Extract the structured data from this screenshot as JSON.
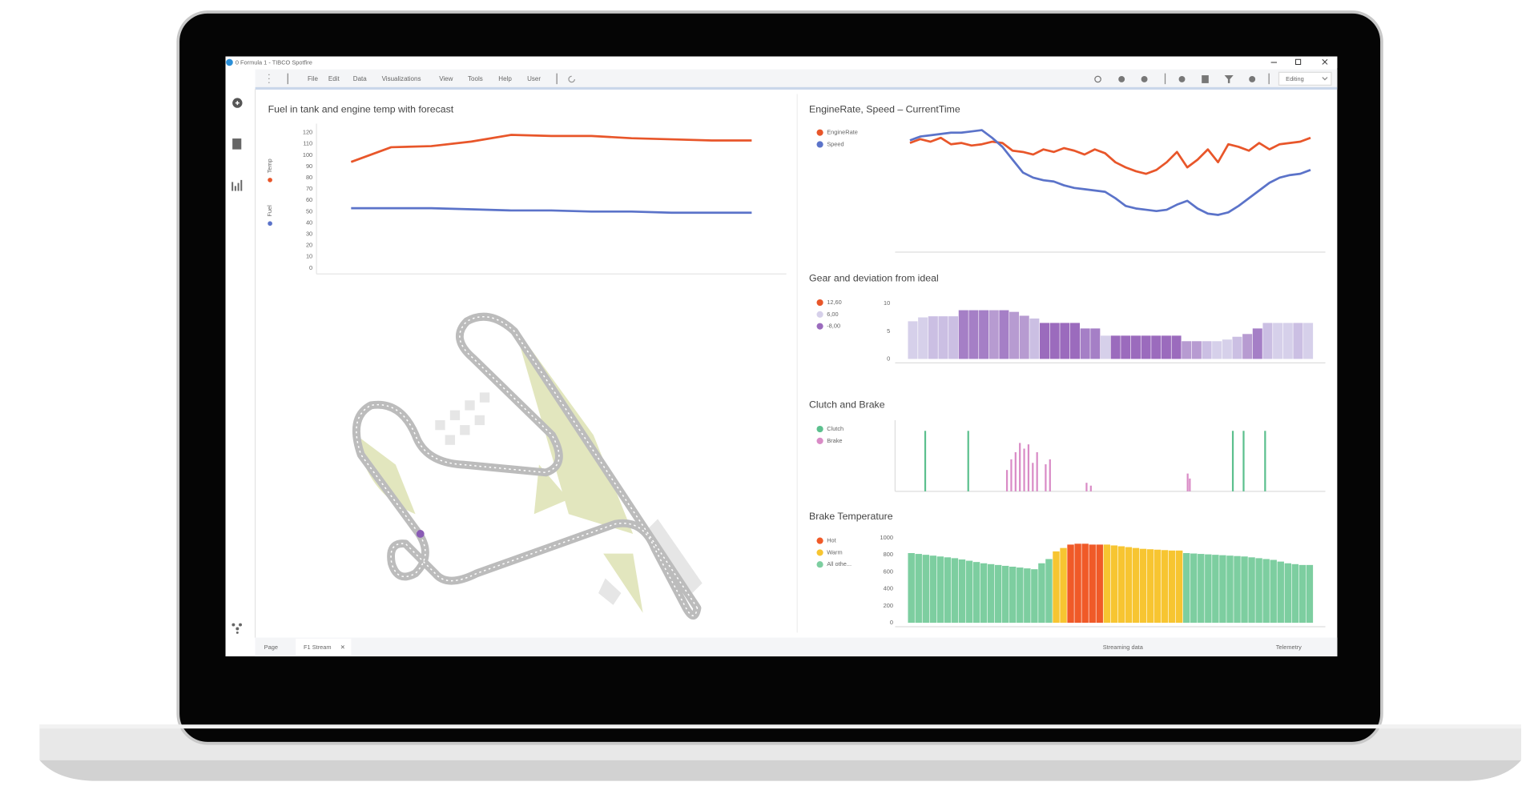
{
  "window": {
    "title": "0 Formula 1 - TIBCO Spotfire",
    "menu": [
      "File",
      "Edit",
      "Data",
      "Visualizations",
      "View",
      "Tools",
      "Help",
      "User"
    ],
    "mode": "Editing"
  },
  "tabs": {
    "page": "Page",
    "active": "F1 Stream",
    "status": "Streaming data",
    "right": "Telemetry"
  },
  "chart_data": [
    {
      "type": "line",
      "title": "Fuel in tank and engine temp with forecast",
      "ylim": [
        0,
        120
      ],
      "yticks": [
        0,
        10,
        20,
        30,
        40,
        50,
        60,
        70,
        80,
        90,
        100,
        110,
        120
      ],
      "series": [
        {
          "name": "Temp",
          "color": "#e8562a",
          "values": [
            94,
            107,
            108,
            112,
            118,
            117,
            117,
            115,
            114,
            113,
            113
          ]
        },
        {
          "name": "Fuel",
          "color": "#5b73c9",
          "values": [
            53,
            53,
            53,
            52,
            51,
            51,
            50,
            50,
            49,
            49,
            49
          ]
        }
      ]
    },
    {
      "type": "line",
      "title": "EngineRate, Speed – CurrentTime",
      "ylim": [
        0,
        100
      ],
      "series": [
        {
          "name": "EngineRate",
          "color": "#e8562a",
          "values": [
            85,
            88,
            86,
            89,
            84,
            85,
            83,
            84,
            86,
            85,
            79,
            78,
            76,
            80,
            78,
            81,
            79,
            76,
            80,
            77,
            70,
            66,
            63,
            61,
            64,
            70,
            78,
            66,
            72,
            80,
            70,
            84,
            82,
            79,
            85,
            80,
            84,
            85,
            86,
            89
          ]
        },
        {
          "name": "Speed",
          "color": "#5b73c9",
          "values": [
            87,
            90,
            91,
            92,
            93,
            93,
            94,
            95,
            89,
            82,
            72,
            62,
            58,
            56,
            55,
            52,
            50,
            49,
            48,
            47,
            42,
            36,
            34,
            33,
            32,
            33,
            37,
            40,
            34,
            30,
            29,
            31,
            36,
            42,
            48,
            54,
            58,
            60,
            61,
            64
          ]
        }
      ]
    },
    {
      "type": "bar",
      "title": "Gear and deviation from ideal",
      "ylim": [
        0,
        10
      ],
      "yticks": [
        0,
        5,
        10
      ],
      "legend": [
        {
          "label": "12,60",
          "color": "#e8562a"
        },
        {
          "label": "6,00",
          "color": "#d6d0ea"
        },
        {
          "label": "-8,00",
          "color": "#9b6bbd"
        }
      ],
      "values": [
        6.8,
        7.5,
        7.7,
        7.7,
        7.7,
        8.8,
        8.8,
        8.8,
        8.8,
        8.8,
        8.5,
        7.8,
        7.3,
        6.5,
        6.5,
        6.5,
        6.5,
        5.5,
        5.5,
        4.2,
        4.2,
        4.2,
        4.2,
        4.2,
        4.2,
        4.2,
        4.2,
        3.2,
        3.2,
        3.2,
        3.2,
        3.5,
        4,
        4.5,
        5.5,
        6.5,
        6.5,
        6.5,
        6.5,
        6.5
      ],
      "colors": [
        "#d6d0ea",
        "#d6d0ea",
        "#cbbfe3",
        "#cbbfe3",
        "#cbbfe3",
        "#a57fc6",
        "#a57fc6",
        "#a57fc6",
        "#b79bd1",
        "#a57fc6",
        "#b79bd1",
        "#b79bd1",
        "#cbbfe3",
        "#9b6bbd",
        "#9b6bbd",
        "#9b6bbd",
        "#9b6bbd",
        "#a57fc6",
        "#a57fc6",
        "#d6d0ea",
        "#9b6bbd",
        "#9b6bbd",
        "#9b6bbd",
        "#9b6bbd",
        "#9b6bbd",
        "#9b6bbd",
        "#9b6bbd",
        "#b79bd1",
        "#b79bd1",
        "#cbbfe3",
        "#d6d0ea",
        "#d6d0ea",
        "#cbbfe3",
        "#b79bd1",
        "#a57fc6",
        "#cbbfe3",
        "#d6d0ea",
        "#d6d0ea",
        "#cbbfe3",
        "#d6d0ea"
      ]
    },
    {
      "type": "bar",
      "title": "Clutch and Brake",
      "xlim": [
        0,
        100
      ],
      "ylim": [
        0,
        100
      ],
      "series": [
        {
          "name": "Clutch",
          "color": "#5cc08e",
          "x": [
            7,
            17,
            78.5,
            81,
            86
          ],
          "values": [
            85,
            85,
            85,
            85,
            85
          ]
        },
        {
          "name": "Brake",
          "color": "#d98bc6",
          "x": [
            26,
            27,
            28,
            29,
            30,
            31,
            32,
            33,
            35,
            36,
            44.5,
            45.5,
            68,
            68.5
          ],
          "values": [
            30,
            45,
            55,
            68,
            60,
            66,
            40,
            55,
            38,
            45,
            12,
            8,
            25,
            18
          ]
        }
      ]
    },
    {
      "type": "bar",
      "title": "Brake Temperature",
      "ylim": [
        0,
        1000
      ],
      "yticks": [
        0,
        200,
        400,
        600,
        800,
        1000
      ],
      "series": [
        {
          "name": "Hot",
          "color": "#f05a28",
          "values": [
            null,
            null,
            null,
            null,
            null,
            null,
            null,
            null,
            null,
            null,
            null,
            null,
            null,
            null,
            null,
            null,
            null,
            null,
            null,
            null,
            null,
            null,
            920,
            930,
            930,
            920,
            920,
            null,
            null,
            null,
            null,
            null,
            null,
            null,
            null,
            null,
            null,
            null,
            null,
            null,
            null,
            null,
            null,
            null,
            null,
            null,
            null,
            null,
            null,
            null,
            null,
            null,
            null,
            null,
            null,
            null
          ]
        },
        {
          "name": "Warm",
          "color": "#f7c531",
          "values": [
            null,
            null,
            null,
            null,
            null,
            null,
            null,
            null,
            null,
            null,
            null,
            null,
            null,
            null,
            null,
            null,
            null,
            null,
            null,
            null,
            840,
            880,
            null,
            null,
            null,
            null,
            null,
            920,
            910,
            900,
            890,
            880,
            870,
            865,
            860,
            855,
            850,
            850,
            null,
            null,
            null,
            null,
            null,
            null,
            null,
            null,
            null,
            null,
            null,
            null,
            null,
            null,
            null,
            null,
            null,
            null
          ]
        },
        {
          "name": "All othe...",
          "color": "#7dcea0",
          "values": [
            820,
            810,
            800,
            790,
            780,
            770,
            760,
            745,
            730,
            715,
            700,
            690,
            680,
            670,
            660,
            650,
            640,
            630,
            700,
            750,
            null,
            null,
            null,
            null,
            null,
            null,
            null,
            null,
            null,
            null,
            null,
            null,
            null,
            null,
            null,
            null,
            null,
            null,
            820,
            815,
            810,
            805,
            800,
            795,
            790,
            785,
            780,
            770,
            760,
            750,
            740,
            720,
            700,
            690,
            680,
            680
          ]
        }
      ]
    }
  ]
}
